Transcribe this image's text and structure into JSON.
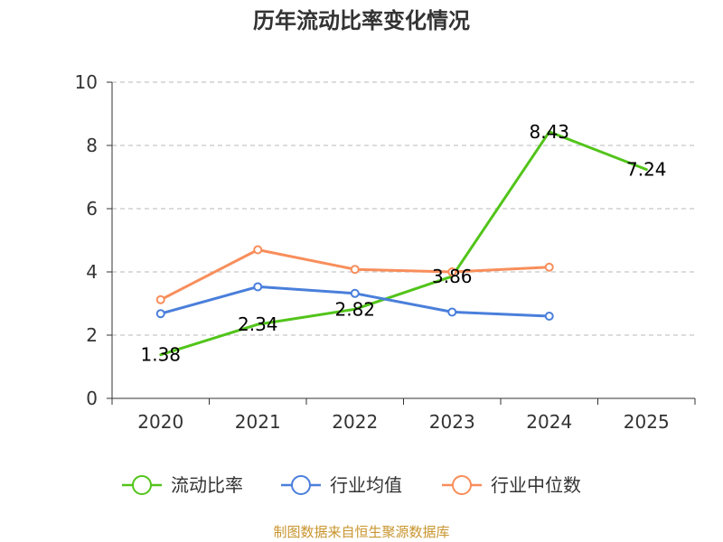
{
  "chart_data": {
    "type": "line",
    "title": "历年流动比率变化情况",
    "categories": [
      "2020",
      "2021",
      "2022",
      "2023",
      "2024",
      "2025"
    ],
    "y_ticks": [
      "0",
      "2",
      "4",
      "6",
      "8",
      "10"
    ],
    "ylim": [
      0,
      10
    ],
    "grid": true,
    "legend_position": "bottom",
    "series": [
      {
        "name": "流动比率",
        "color": "#52c41a",
        "values": [
          1.38,
          2.34,
          2.82,
          3.86,
          8.43,
          7.24
        ],
        "labels": [
          "1.38",
          "2.34",
          "2.82",
          "3.86",
          "8.43",
          "7.24"
        ]
      },
      {
        "name": "行业均值",
        "color": "#4a7fdb",
        "values": [
          2.68,
          3.53,
          3.32,
          2.73,
          2.6,
          null
        ]
      },
      {
        "name": "行业中位数",
        "color": "#f88e5b",
        "values": [
          3.12,
          4.7,
          4.08,
          4.0,
          4.15,
          null
        ]
      }
    ]
  },
  "footer": {
    "source": "制图数据来自恒生聚源数据库"
  }
}
